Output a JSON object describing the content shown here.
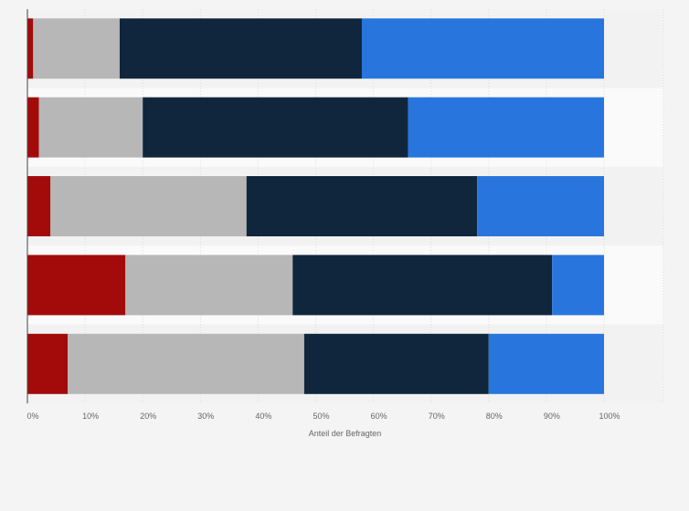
{
  "chart_data": {
    "type": "bar",
    "orientation": "horizontal",
    "stacked": true,
    "xlabel": "Anteil der Befragten",
    "xlim": [
      0,
      100
    ],
    "x_tick_labels": [
      "0%",
      "10%",
      "20%",
      "30%",
      "40%",
      "50%",
      "60%",
      "70%",
      "80%",
      "90%",
      "100%"
    ],
    "grid": true,
    "categories": [
      "",
      "",
      "",
      "",
      ""
    ],
    "series": [
      {
        "color": "#a30b0b",
        "values": [
          1,
          2,
          4,
          17,
          7
        ]
      },
      {
        "color": "#b7b7b7",
        "values": [
          15,
          18,
          34,
          29,
          41
        ]
      },
      {
        "color": "#10263d",
        "values": [
          42,
          46,
          40,
          45,
          32
        ]
      },
      {
        "color": "#2876dd",
        "values": [
          42,
          34,
          22,
          9,
          20
        ]
      }
    ]
  }
}
